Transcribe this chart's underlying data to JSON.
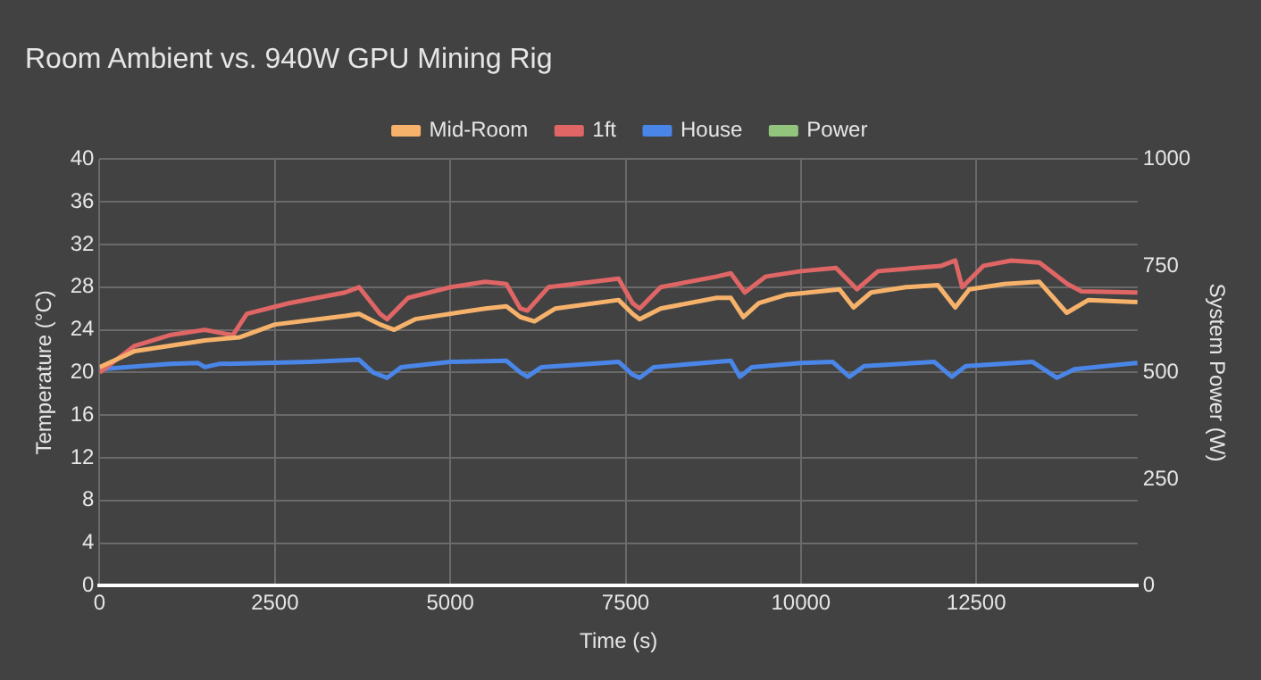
{
  "chart_data": {
    "type": "line",
    "title": "Room Ambient vs. 940W GPU Mining Rig",
    "xlabel": "Time (s)",
    "ylabel": "Temperature (°C)",
    "y2label": "System Power (W)",
    "xlim": [
      0,
      14800
    ],
    "xticks": [
      0,
      2500,
      5000,
      7500,
      10000,
      12500
    ],
    "ylim": [
      0,
      40
    ],
    "yticks": [
      0,
      4,
      8,
      12,
      16,
      20,
      24,
      28,
      32,
      36,
      40
    ],
    "y2lim": [
      0,
      1000
    ],
    "y2ticks": [
      0,
      250,
      500,
      750,
      1000
    ],
    "grid": true,
    "legend": "top",
    "marker": "none",
    "series": [
      {
        "name": "Mid-Room",
        "color": "#f6b26b",
        "x": [
          0,
          500,
          1500,
          2000,
          2500,
          3500,
          3700,
          4000,
          4200,
          4500,
          5500,
          5800,
          6000,
          6200,
          6500,
          7400,
          7600,
          7700,
          8000,
          8800,
          9000,
          9180,
          9400,
          9800,
          10550,
          10750,
          11000,
          11500,
          11950,
          12200,
          12400,
          12900,
          13400,
          13790,
          14100,
          14800
        ],
        "values": [
          20.5,
          22,
          23,
          23.3,
          24.5,
          25.3,
          25.5,
          24.5,
          24,
          25,
          26,
          26.2,
          25.2,
          24.8,
          26,
          26.8,
          25.5,
          25,
          26,
          27,
          27,
          25.2,
          26.5,
          27.3,
          27.8,
          26.1,
          27.5,
          28,
          28.2,
          26.1,
          27.8,
          28.3,
          28.5,
          25.6,
          26.8,
          26.6
        ]
      },
      {
        "name": "1ft",
        "color": "#e06666",
        "x": [
          0,
          500,
          1000,
          1500,
          1900,
          2100,
          2700,
          3500,
          3700,
          4000,
          4100,
          4400,
          5000,
          5500,
          5800,
          6000,
          6100,
          6400,
          7400,
          7600,
          7700,
          8000,
          8800,
          9000,
          9200,
          9500,
          10000,
          10500,
          10800,
          11100,
          12000,
          12200,
          12300,
          12600,
          13000,
          13400,
          13800,
          14000,
          14800
        ],
        "values": [
          20,
          22.5,
          23.5,
          24,
          23.5,
          25.5,
          26.5,
          27.5,
          28,
          25.5,
          25,
          27,
          28,
          28.5,
          28.3,
          26,
          25.8,
          28,
          28.8,
          26.5,
          26,
          28,
          29,
          29.3,
          27.5,
          29,
          29.5,
          29.8,
          27.8,
          29.5,
          30,
          30.5,
          28,
          30,
          30.5,
          30.3,
          28.3,
          27.6,
          27.5
        ]
      },
      {
        "name": "House",
        "color": "#4a86e8",
        "x": [
          0,
          1000,
          1400,
          1500,
          1700,
          3000,
          3700,
          3900,
          4100,
          4300,
          5000,
          5800,
          6000,
          6100,
          6300,
          7400,
          7600,
          7700,
          7900,
          8800,
          9000,
          9130,
          9300,
          10000,
          10450,
          10690,
          10900,
          11900,
          12150,
          12350,
          13300,
          13650,
          13900,
          14800
        ],
        "values": [
          20.3,
          20.8,
          20.9,
          20.5,
          20.8,
          21,
          21.2,
          20,
          19.5,
          20.5,
          21,
          21.1,
          20,
          19.6,
          20.5,
          21,
          19.8,
          19.5,
          20.5,
          21,
          21.1,
          19.6,
          20.5,
          20.9,
          21,
          19.6,
          20.6,
          21,
          19.6,
          20.6,
          21,
          19.5,
          20.3,
          20.9
        ]
      },
      {
        "name": "Power",
        "color": "#93c47d"
      }
    ]
  }
}
